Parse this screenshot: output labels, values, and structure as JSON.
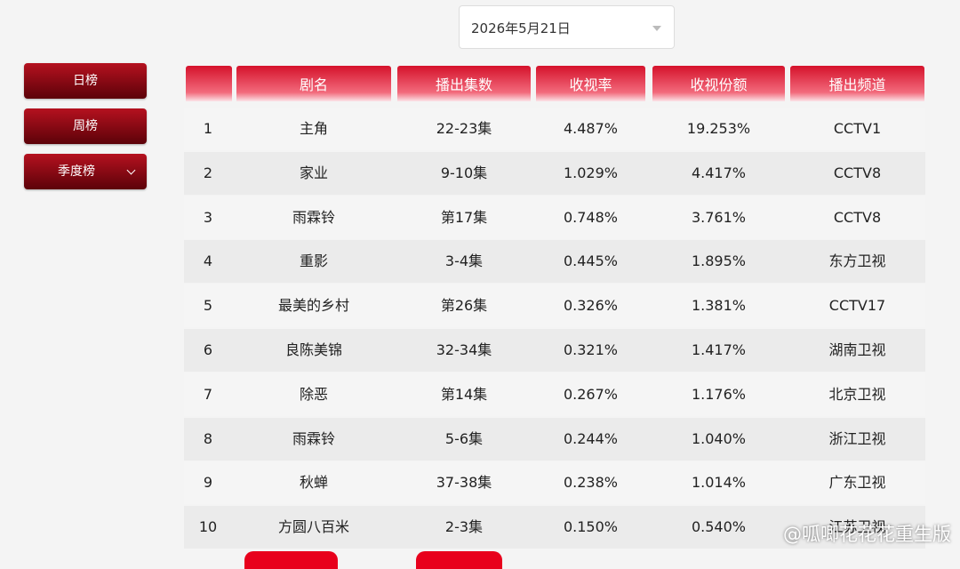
{
  "date": "2026年5月21日",
  "tabs": [
    "日榜",
    "周榜",
    "季度榜"
  ],
  "table": {
    "headers": [
      "剧名",
      "播出集数",
      "收视率",
      "收视份额",
      "播出频道"
    ],
    "rows": [
      [
        1,
        "主角",
        "22-23集",
        "4.487%",
        "19.253%",
        "CCTV1"
      ],
      [
        2,
        "家业",
        "9-10集",
        "1.029%",
        "4.417%",
        "CCTV8"
      ],
      [
        3,
        "雨霖铃",
        "第17集",
        "0.748%",
        "3.761%",
        "CCTV8"
      ],
      [
        4,
        "重影",
        "3-4集",
        "0.445%",
        "1.895%",
        "东方卫视"
      ],
      [
        5,
        "最美的乡村",
        "第26集",
        "0.326%",
        "1.381%",
        "CCTV17"
      ],
      [
        6,
        "良陈美锦",
        "32-34集",
        "0.321%",
        "1.417%",
        "湖南卫视"
      ],
      [
        7,
        "除恶",
        "第14集",
        "0.267%",
        "1.176%",
        "北京卫视"
      ],
      [
        8,
        "雨霖铃",
        "5-6集",
        "0.244%",
        "1.040%",
        "浙江卫视"
      ],
      [
        9,
        "秋蝉",
        "37-38集",
        "0.238%",
        "1.014%",
        "广东卫视"
      ],
      [
        10,
        "方圆八百米",
        "2-3集",
        "0.150%",
        "0.540%",
        "江苏卫视"
      ]
    ]
  },
  "watermark": "@呱唧花花花重生版"
}
